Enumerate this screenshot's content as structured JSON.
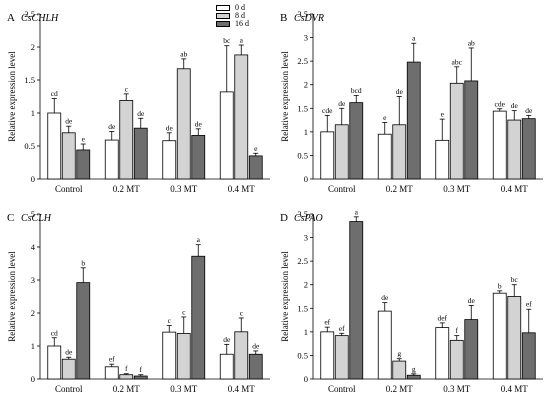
{
  "legend": [
    {
      "label": "0 d",
      "color": "#ffffff"
    },
    {
      "label": "8 d",
      "color": "#d3d3d3"
    },
    {
      "label": "16 d",
      "color": "#6e6e6e"
    }
  ],
  "chart_data": [
    {
      "type": "bar",
      "panel_letter": "A",
      "title": "CsCHLH",
      "ylabel": "Relative expression level",
      "categories": [
        "Control",
        "0.2 MT",
        "0.3 MT",
        "0.4 MT"
      ],
      "ylim": [
        0,
        2.5
      ],
      "yticks": [
        "0",
        "0.5",
        "1",
        "1.5",
        "2",
        "2.5"
      ],
      "ytick_values": [
        0,
        0.5,
        1,
        1.5,
        2,
        2.5
      ],
      "series": [
        {
          "name": "0 d",
          "values": [
            1.0,
            0.59,
            0.58,
            1.32
          ],
          "errors": [
            0.22,
            0.13,
            0.12,
            0.7
          ],
          "labels": [
            "cd",
            "de",
            "de",
            "bc"
          ]
        },
        {
          "name": "8 d",
          "values": [
            0.7,
            1.19,
            1.67,
            1.88
          ],
          "errors": [
            0.1,
            0.1,
            0.15,
            0.15
          ],
          "labels": [
            "de",
            "c",
            "ab",
            "a"
          ]
        },
        {
          "name": "16 d",
          "values": [
            0.44,
            0.77,
            0.66,
            0.35
          ],
          "errors": [
            0.09,
            0.15,
            0.1,
            0.04
          ],
          "labels": [
            "e",
            "de",
            "de",
            "e"
          ]
        }
      ]
    },
    {
      "type": "bar",
      "panel_letter": "B",
      "title": "CsDVR",
      "ylabel": "Relative expression level",
      "categories": [
        "Control",
        "0.2 MT",
        "0.3 MT",
        "0.4 MT"
      ],
      "ylim": [
        0,
        3.5
      ],
      "yticks": [
        "0",
        "0.5",
        "1",
        "1.5",
        "2",
        "2.5",
        "3",
        "3.5"
      ],
      "ytick_values": [
        0,
        0.5,
        1,
        1.5,
        2,
        2.5,
        3,
        3.5
      ],
      "series": [
        {
          "name": "0 d",
          "values": [
            1.0,
            0.95,
            0.82,
            1.44
          ],
          "errors": [
            0.35,
            0.25,
            0.45,
            0.05
          ],
          "labels": [
            "cde",
            "e",
            "e",
            "cde"
          ]
        },
        {
          "name": "8 d",
          "values": [
            1.15,
            1.15,
            2.03,
            1.25
          ],
          "errors": [
            0.35,
            0.6,
            0.35,
            0.2
          ],
          "labels": [
            "de",
            "de",
            "abc",
            "de"
          ]
        },
        {
          "name": "16 d",
          "values": [
            1.62,
            2.48,
            2.08,
            1.28
          ],
          "errors": [
            0.15,
            0.4,
            0.7,
            0.07
          ],
          "labels": [
            "bcd",
            "a",
            "ab",
            "de"
          ]
        }
      ]
    },
    {
      "type": "bar",
      "panel_letter": "C",
      "title": "CsCLH",
      "ylabel": "Relative expression level",
      "categories": [
        "Control",
        "0.2 MT",
        "0.3 MT",
        "0.4 MT"
      ],
      "ylim": [
        0,
        5
      ],
      "yticks": [
        "0",
        "1",
        "2",
        "3",
        "4",
        "5"
      ],
      "ytick_values": [
        0,
        1,
        2,
        3,
        4,
        5
      ],
      "series": [
        {
          "name": "0 d",
          "values": [
            1.0,
            0.37,
            1.42,
            0.75
          ],
          "errors": [
            0.25,
            0.08,
            0.2,
            0.3
          ],
          "labels": [
            "cd",
            "ef",
            "c",
            "de"
          ]
        },
        {
          "name": "8 d",
          "values": [
            0.6,
            0.13,
            1.38,
            1.43
          ],
          "errors": [
            0.06,
            0.03,
            0.5,
            0.42
          ],
          "labels": [
            "de",
            "f",
            "c",
            "c"
          ]
        },
        {
          "name": "16 d",
          "values": [
            2.92,
            0.09,
            3.72,
            0.75
          ],
          "errors": [
            0.45,
            0.04,
            0.35,
            0.1
          ],
          "labels": [
            "b",
            "f",
            "a",
            "de"
          ]
        }
      ]
    },
    {
      "type": "bar",
      "panel_letter": "D",
      "title": "CsPAO",
      "ylabel": "Relative expression level",
      "categories": [
        "Control",
        "0.2 MT",
        "0.3 MT",
        "0.4 MT"
      ],
      "ylim": [
        0,
        3.5
      ],
      "yticks": [
        "0",
        "0.5",
        "1",
        "1.5",
        "2",
        "2.5",
        "3",
        "3.5"
      ],
      "ytick_values": [
        0,
        0.5,
        1,
        1.5,
        2,
        2.5,
        3,
        3.5
      ],
      "series": [
        {
          "name": "0 d",
          "values": [
            1.0,
            1.44,
            1.09,
            1.82
          ],
          "errors": [
            0.1,
            0.18,
            0.1,
            0.05
          ],
          "labels": [
            "ef",
            "de",
            "def",
            "b"
          ]
        },
        {
          "name": "8 d",
          "values": [
            0.92,
            0.38,
            0.82,
            1.75
          ],
          "errors": [
            0.05,
            0.05,
            0.1,
            0.25
          ],
          "labels": [
            "ef",
            "g",
            "f",
            "bc"
          ]
        },
        {
          "name": "16 d",
          "values": [
            3.34,
            0.08,
            1.26,
            0.98
          ],
          "errors": [
            0.1,
            0.03,
            0.3,
            0.5
          ],
          "labels": [
            "a",
            "g",
            "de",
            "ef"
          ]
        }
      ]
    }
  ]
}
